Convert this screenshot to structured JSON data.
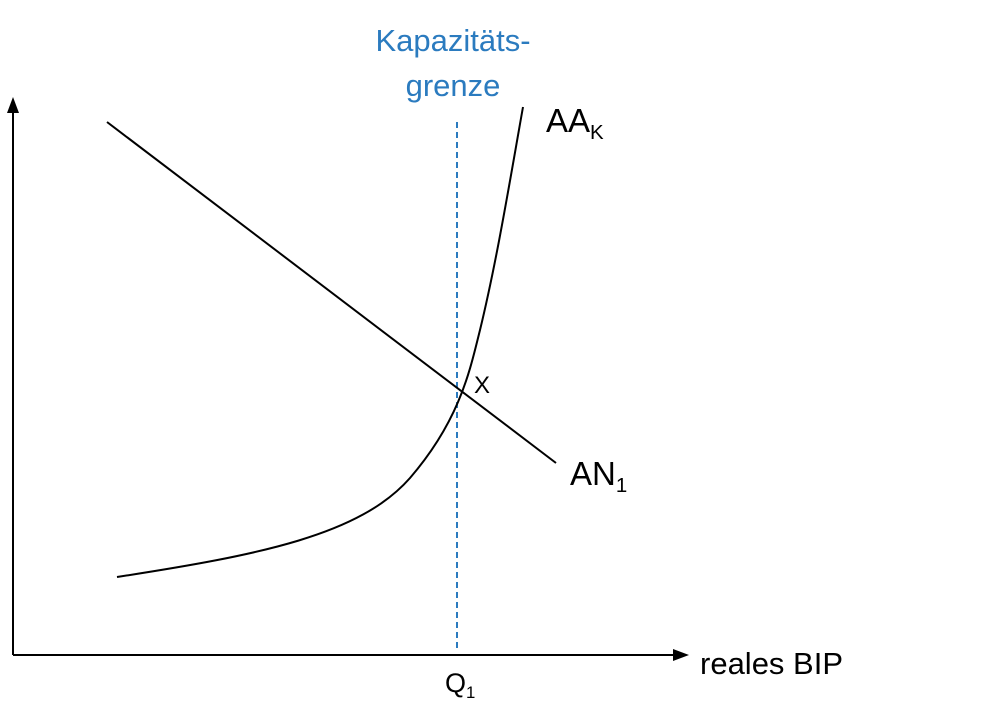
{
  "labels": {
    "capacity_line1": "Kapazitäts-",
    "capacity_line2": "grenze",
    "supply_curve_main": "AA",
    "supply_curve_sub": "K",
    "demand_curve_main": "AN",
    "demand_curve_sub": "1",
    "intersection": "X",
    "quantity_main": "Q",
    "quantity_sub": "1",
    "x_axis": "reales BIP"
  },
  "colors": {
    "lines": "#000000",
    "capacity_limit": "#2b7bbf",
    "background": "#ffffff"
  }
}
